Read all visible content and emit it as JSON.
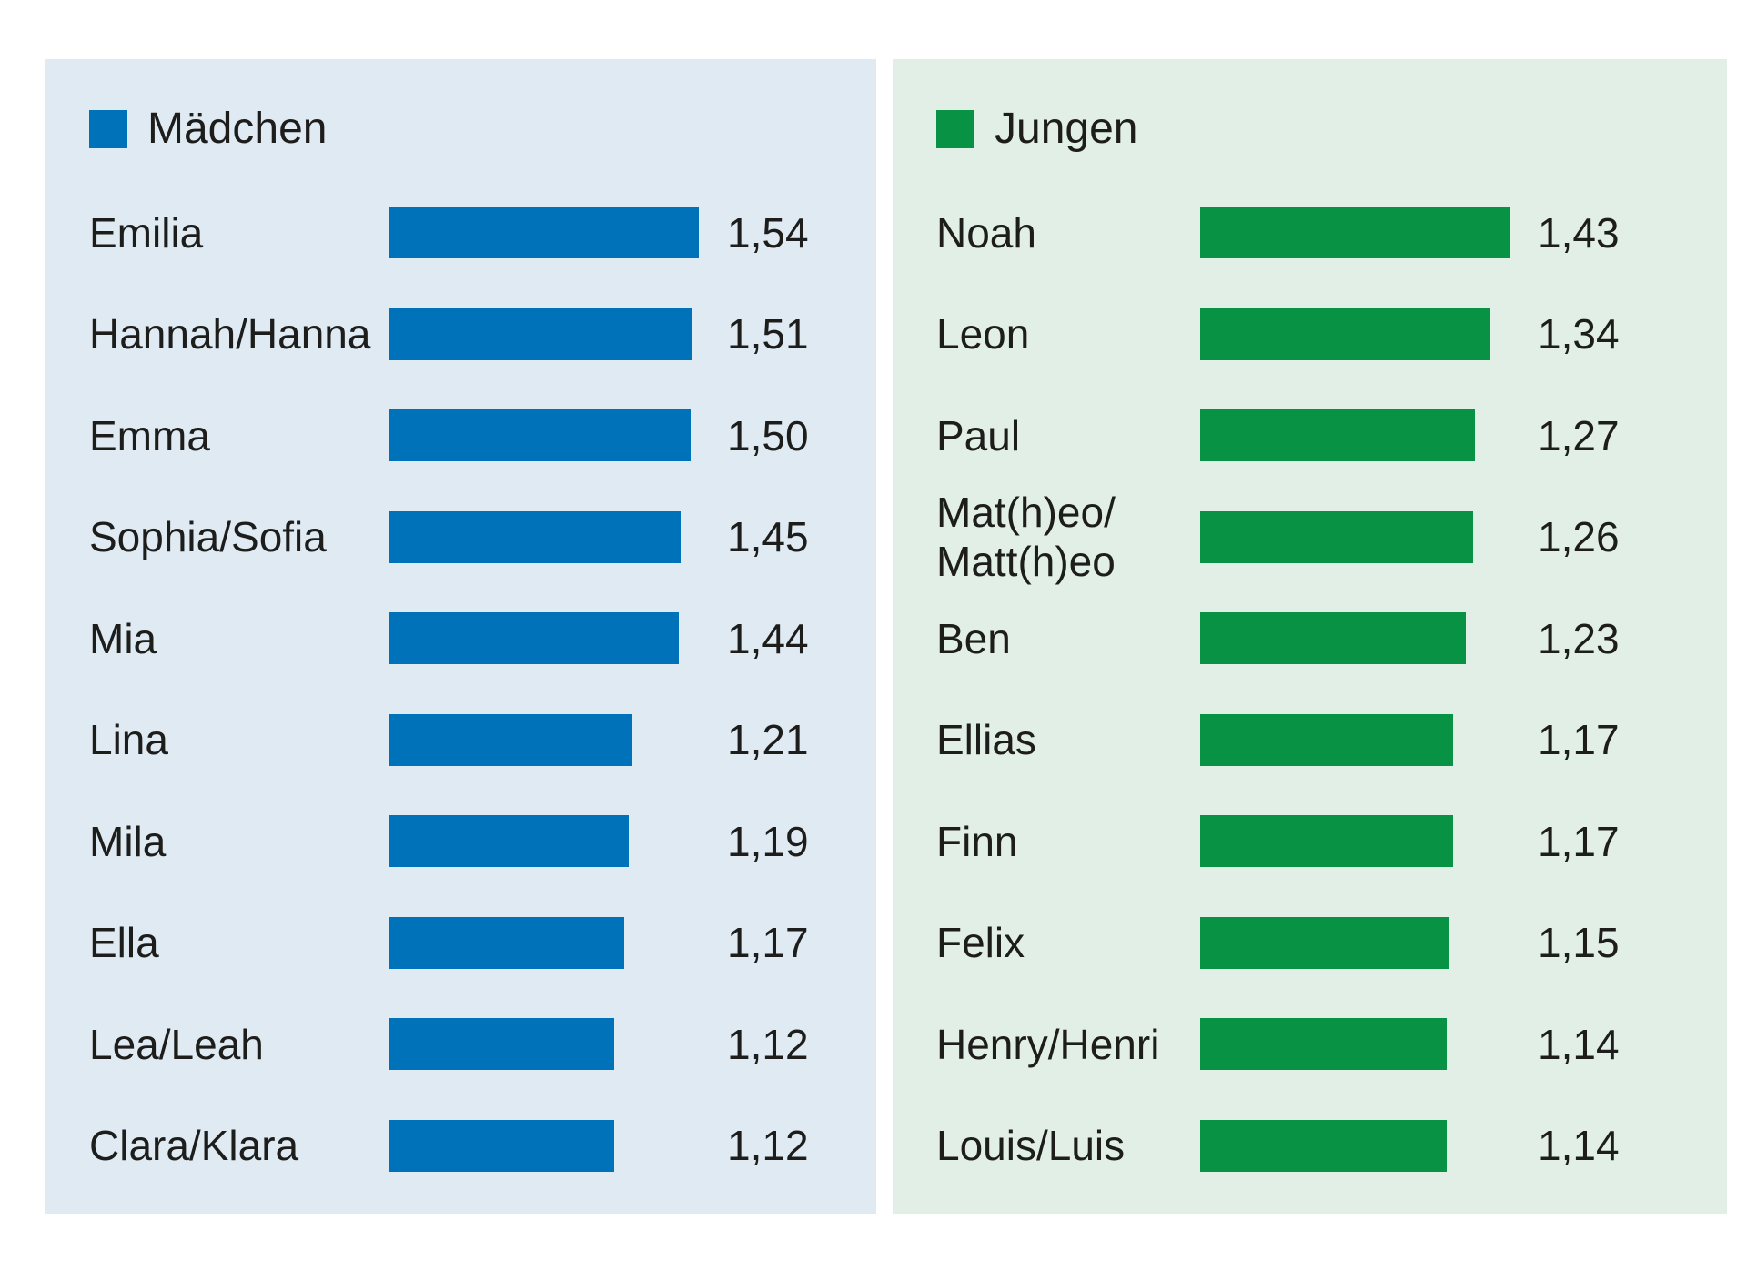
{
  "chart_data": [
    {
      "type": "bar",
      "orientation": "horizontal",
      "title": "Mädchen",
      "legend_position": "top-left",
      "bar_color": "#0072b9",
      "panel_bg": "#dfeaf3",
      "value_format": "decimal-comma",
      "xlim": [
        0,
        1.54
      ],
      "categories": [
        "Emilia",
        "Hannah/Hanna",
        "Emma",
        "Sophia/Sofia",
        "Mia",
        "Lina",
        "Mila",
        "Ella",
        "Lea/Leah",
        "Clara/Klara"
      ],
      "values": [
        1.54,
        1.51,
        1.5,
        1.45,
        1.44,
        1.21,
        1.19,
        1.17,
        1.12,
        1.12
      ],
      "value_labels": [
        "1,54",
        "1,51",
        "1,50",
        "1,45",
        "1,44",
        "1,21",
        "1,19",
        "1,17",
        "1,12",
        "1,12"
      ]
    },
    {
      "type": "bar",
      "orientation": "horizontal",
      "title": "Jungen",
      "legend_position": "top-left",
      "bar_color": "#089344",
      "panel_bg": "#e2efe6",
      "value_format": "decimal-comma",
      "xlim": [
        0,
        1.43
      ],
      "categories": [
        "Noah",
        "Leon",
        "Paul",
        "Mat(h)eo/\nMatt(h)eo",
        "Ben",
        "Ellias",
        "Finn",
        "Felix",
        "Henry/Henri",
        "Louis/Luis"
      ],
      "values": [
        1.43,
        1.34,
        1.27,
        1.26,
        1.23,
        1.17,
        1.17,
        1.15,
        1.14,
        1.14
      ],
      "value_labels": [
        "1,43",
        "1,34",
        "1,27",
        "1,26",
        "1,23",
        "1,17",
        "1,17",
        "1,15",
        "1,14",
        "1,14"
      ]
    }
  ]
}
